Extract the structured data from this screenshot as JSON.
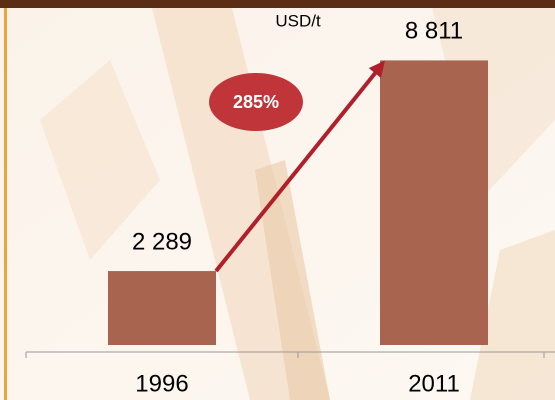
{
  "chart_data": {
    "type": "bar",
    "unit": "USD/t",
    "annotation": "285%",
    "categories": [
      "1996",
      "2011"
    ],
    "values": [
      2289,
      8811
    ],
    "value_labels": [
      "2 289",
      "8 811"
    ],
    "color": "#a8644f",
    "ylim": [
      0,
      10000
    ]
  }
}
